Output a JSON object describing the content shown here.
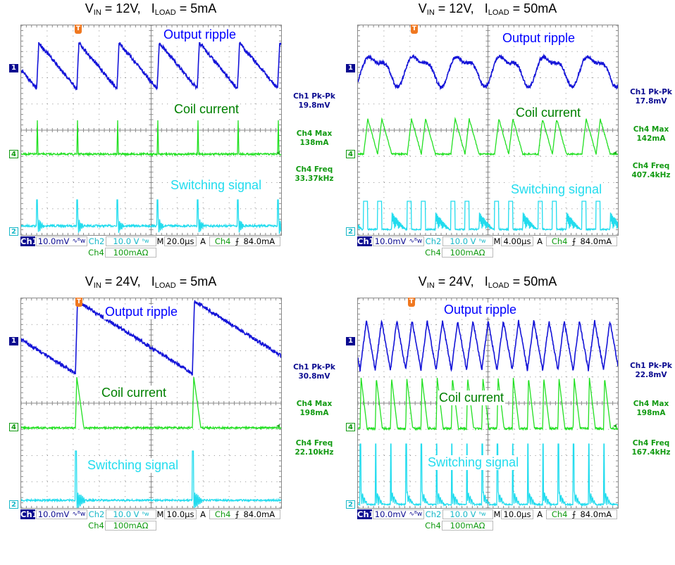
{
  "colors": {
    "ch1": "#1414d8",
    "ch4": "#22e022",
    "ch2": "#22dcee",
    "ch1_text": "#0a0a90",
    "ch4_text": "#109a10",
    "ch2_text": "#18b8c8",
    "ripple_label": "#0000ff",
    "coil_label": "#008000",
    "switch_label": "#22dcee",
    "trigger": "#f07820",
    "grid": "#8a8a8a"
  },
  "trace_labels": {
    "ripple": "Output ripple",
    "coil": "Coil current",
    "switching": "Switching signal"
  },
  "title_parts": {
    "v": "V",
    "v_sub": "IN",
    "i": "I",
    "i_sub": "LOAD"
  },
  "chart_data": [
    {
      "type": "line",
      "vin": "12V",
      "iload": "5mA",
      "title": " = 12V,   ",
      "title_tail": " = 5mA",
      "measurements": [
        {
          "label": "Ch1 Pk-Pk",
          "value": "19.8mV"
        },
        {
          "label": "Ch4 Max",
          "value": "138mA"
        },
        {
          "label": "Ch4 Freq",
          "value": "33.37kHz"
        }
      ],
      "status": {
        "ch1": "Ch1",
        "ch1_scale": "10.0mV",
        "bw": "∿ᴮw",
        "ch2": "Ch2",
        "ch2_scale": "10.0 V",
        "bw2": "ᴮw",
        "m": "M",
        "timebase": "20.0µs",
        "acq": "A",
        "trig_src": "Ch4",
        "trig_slope": "⨍",
        "trig_level": "84.0mA",
        "ch4": "Ch4",
        "ch4_scale": "100mAΩ"
      },
      "markers": {
        "ch1": "1",
        "ch4": "4",
        "ch2": "2",
        "trigger": "T"
      }
    },
    {
      "type": "line",
      "vin": "12V",
      "iload": "50mA",
      "title": " = 12V,   ",
      "title_tail": " = 50mA",
      "measurements": [
        {
          "label": "Ch1 Pk-Pk",
          "value": "17.8mV"
        },
        {
          "label": "Ch4 Max",
          "value": "142mA"
        },
        {
          "label": "Ch4 Freq",
          "value": "407.4kHz"
        }
      ],
      "status": {
        "ch1": "Ch1",
        "ch1_scale": "10.0mV",
        "bw": "∿ᴮw",
        "ch2": "Ch2",
        "ch2_scale": "10.0 V",
        "bw2": "ᴮw",
        "m": "M",
        "timebase": "4.00µs",
        "acq": "A",
        "trig_src": "Ch4",
        "trig_slope": "⨍",
        "trig_level": "84.0mA",
        "ch4": "Ch4",
        "ch4_scale": "100mAΩ"
      },
      "markers": {
        "ch1": "1",
        "ch4": "4",
        "ch2": "2",
        "trigger": "T"
      }
    },
    {
      "type": "line",
      "vin": "24V",
      "iload": "5mA",
      "title": " = 24V,   ",
      "title_tail": " = 5mA",
      "measurements": [
        {
          "label": "Ch1 Pk-Pk",
          "value": "30.8mV"
        },
        {
          "label": "Ch4 Max",
          "value": "198mA"
        },
        {
          "label": "Ch4 Freq",
          "value": "22.10kHz"
        }
      ],
      "status": {
        "ch1": "Ch1",
        "ch1_scale": "10.0mV",
        "bw": "∿ᴮw",
        "ch2": "Ch2",
        "ch2_scale": "10.0 V",
        "bw2": "ᴮw",
        "m": "M",
        "timebase": "10.0µs",
        "acq": "A",
        "trig_src": "Ch4",
        "trig_slope": "⨍",
        "trig_level": "84.0mA",
        "ch4": "Ch4",
        "ch4_scale": "100mAΩ"
      },
      "markers": {
        "ch1": "1",
        "ch4": "4",
        "ch2": "2",
        "trigger": "T"
      }
    },
    {
      "type": "line",
      "vin": "24V",
      "iload": "50mA",
      "title": " = 24V,   ",
      "title_tail": " = 50mA",
      "measurements": [
        {
          "label": "Ch1 Pk-Pk",
          "value": "22.8mV"
        },
        {
          "label": "Ch4 Max",
          "value": "198mA"
        },
        {
          "label": "Ch4 Freq",
          "value": "167.4kHz"
        }
      ],
      "status": {
        "ch1": "Ch1",
        "ch1_scale": "10.0mV",
        "bw": "∿ᴮw",
        "ch2": "Ch2",
        "ch2_scale": "10.0 V",
        "bw2": "ᴮw",
        "m": "M",
        "timebase": "10.0µs",
        "acq": "A",
        "trig_src": "Ch4",
        "trig_slope": "⨍",
        "trig_level": "84.0mA",
        "ch4": "Ch4",
        "ch4_scale": "100mAΩ"
      },
      "markers": {
        "ch1": "1",
        "ch4": "4",
        "ch2": "2",
        "trigger": "T"
      }
    }
  ]
}
